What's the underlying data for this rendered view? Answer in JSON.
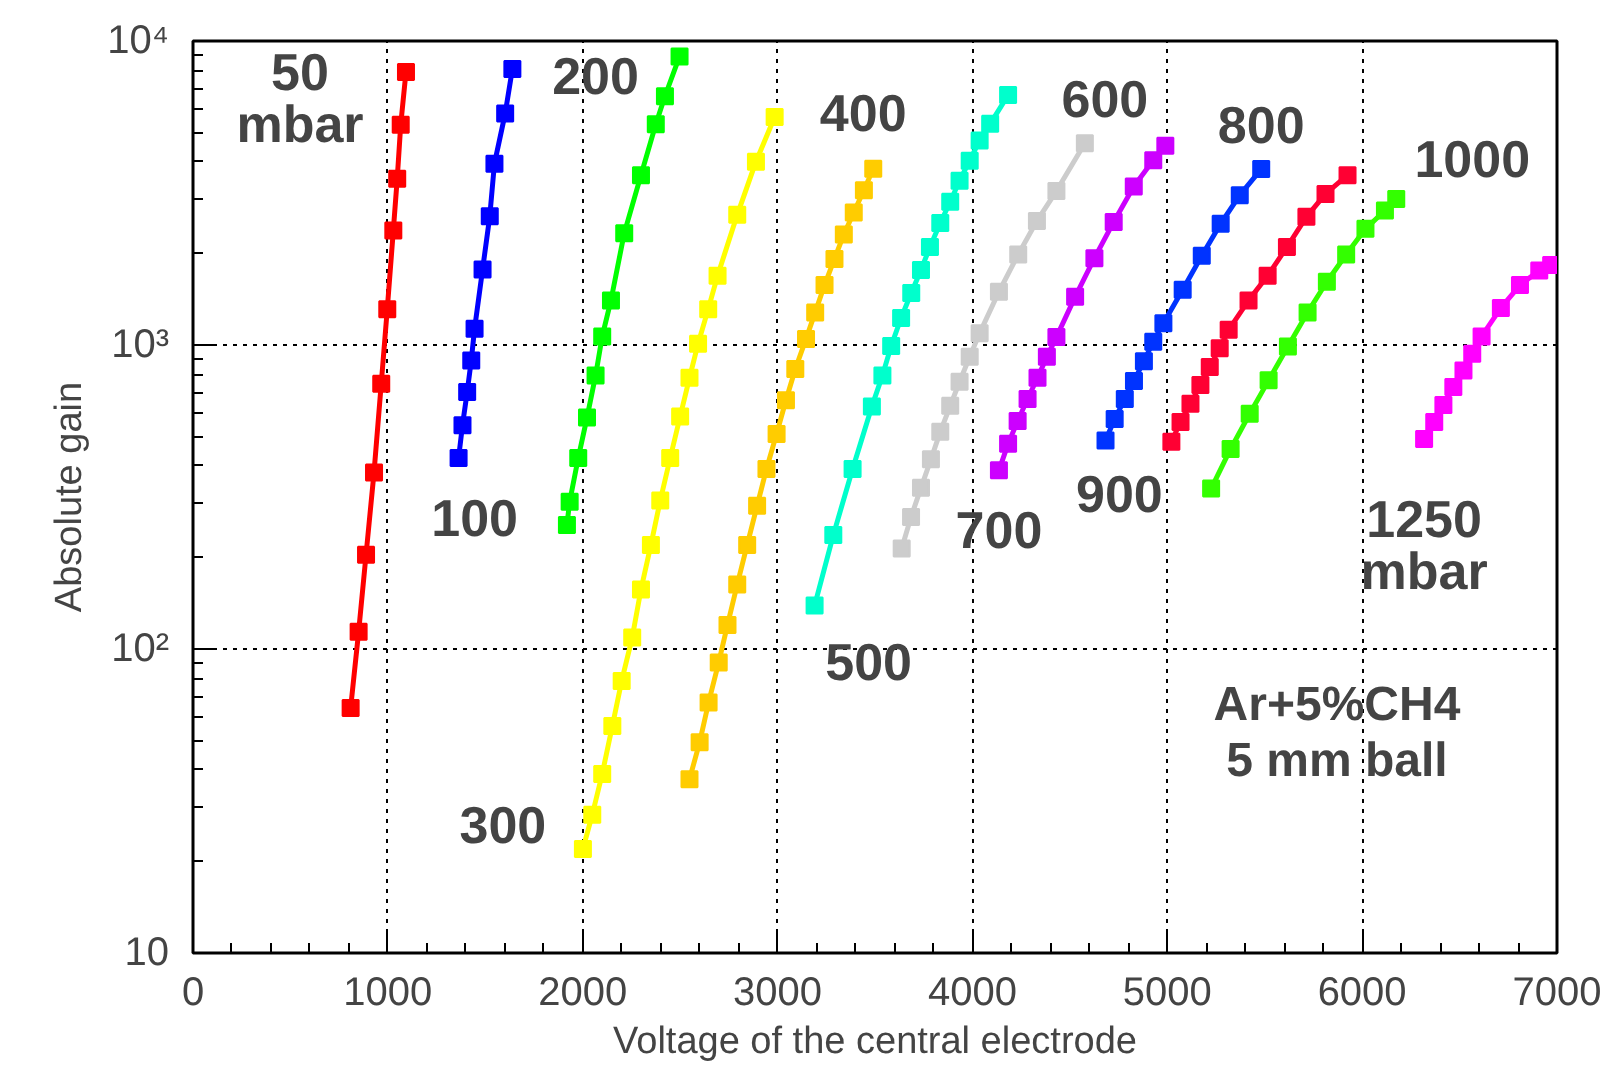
{
  "chart_data": {
    "type": "line",
    "xlabel": "Voltage of the central electrode",
    "ylabel": "Absolute gain",
    "xlim": [
      0,
      7000
    ],
    "ylim": [
      10,
      10000
    ],
    "log": "y",
    "grid": true,
    "marker": "square",
    "line_style": "solid",
    "xticks": [
      0,
      1000,
      2000,
      3000,
      4000,
      5000,
      6000,
      7000
    ],
    "yticks": [
      10,
      {
        "value": 100,
        "label": "10²"
      },
      {
        "value": 1000,
        "label": "10³"
      },
      {
        "value": 10000,
        "label": "10⁴"
      }
    ],
    "annotations": [
      "Ar+5%CH4\n5 mm ball"
    ],
    "series": [
      {
        "name": "50\nmbar",
        "color": "#ff0000",
        "x": [
          809,
          850,
          888,
          929,
          966,
          997,
          1028,
          1048,
          1066,
          1093
        ],
        "values": [
          64,
          114,
          204,
          381,
          745,
          1312,
          2380,
          3520,
          5300,
          7900
        ]
      },
      {
        "name": "100",
        "color": "#0000ff",
        "x": [
          1363,
          1383,
          1407,
          1428,
          1445,
          1486,
          1523,
          1547,
          1602,
          1639
        ],
        "values": [
          425,
          545,
          700,
          890,
          1130,
          1770,
          2650,
          3950,
          5770,
          8090
        ]
      },
      {
        "name": "200",
        "color": "#00ff00",
        "x": [
          1919,
          1933,
          1977,
          2022,
          2066,
          2100,
          2145,
          2213,
          2299,
          2375,
          2422,
          2497
        ],
        "values": [
          256,
          305,
          425,
          577,
          793,
          1067,
          1402,
          2330,
          3620,
          5320,
          6580,
          8900
        ]
      },
      {
        "name": "300",
        "color": "#ffff00",
        "x": [
          2001,
          2049,
          2100,
          2152,
          2200,
          2254,
          2299,
          2350,
          2398,
          2449,
          2500,
          2548,
          2592,
          2644,
          2692,
          2793,
          2889,
          2985
        ],
        "values": [
          22,
          28.5,
          38.8,
          55.8,
          78.5,
          109,
          157,
          220,
          308,
          425,
          582,
          780,
          1010,
          1312,
          1690,
          2680,
          4010,
          5620
        ]
      },
      {
        "name": "400",
        "color": "#ffcc00",
        "x": [
          2548,
          2600,
          2646,
          2698,
          2743,
          2793,
          2844,
          2895,
          2943,
          2995,
          3043,
          3091,
          3146,
          3193,
          3241,
          3292,
          3340,
          3391,
          3443,
          3491
        ],
        "values": [
          37.3,
          49.3,
          66.7,
          90.3,
          120,
          163,
          220,
          296,
          391,
          510,
          658,
          834,
          1047,
          1280,
          1575,
          1920,
          2310,
          2730,
          3230,
          3800
        ]
      },
      {
        "name": "500",
        "color": "#00ffcc",
        "x": [
          3190,
          3286,
          3385,
          3484,
          3538,
          3583,
          3634,
          3686,
          3736,
          3782,
          3835,
          3886,
          3934,
          3986,
          4037,
          4091,
          4183
        ],
        "values": [
          139,
          237,
          391,
          628,
          793,
          993,
          1227,
          1482,
          1766,
          2100,
          2520,
          2960,
          3470,
          4040,
          4710,
          5340,
          6640
        ]
      },
      {
        "name": "600",
        "color": "#cccccc",
        "x": [
          3637,
          3685,
          3736,
          3787,
          3835,
          3886,
          3934,
          3986,
          4037,
          4136,
          4235,
          4331,
          4431,
          4577
        ],
        "values": [
          214,
          272,
          339,
          421,
          518,
          631,
          757,
          914,
          1094,
          1497,
          1985,
          2560,
          3210,
          4610
        ]
      },
      {
        "name": "700",
        "color": "#cc00ff",
        "x": [
          4136,
          4183,
          4232,
          4283,
          4334,
          4382,
          4431,
          4527,
          4626,
          4725,
          4828,
          4928,
          4990
        ],
        "values": [
          387,
          473,
          562,
          664,
          780,
          914,
          1062,
          1440,
          1930,
          2540,
          3320,
          4050,
          4520
        ]
      },
      {
        "name": "800",
        "color": "#0033ff",
        "x": [
          4683,
          4730,
          4782,
          4829,
          4880,
          4928,
          4980,
          5079,
          5177,
          5274,
          5372,
          5482
        ],
        "values": [
          485,
          571,
          664,
          762,
          885,
          1025,
          1180,
          1520,
          1965,
          2505,
          3110,
          3790
        ]
      },
      {
        "name": "900",
        "color": "#ff0033",
        "x": [
          5021,
          5068,
          5119,
          5170,
          5218,
          5269,
          5315,
          5417,
          5515,
          5614,
          5714,
          5812,
          5925
        ],
        "values": [
          481,
          558,
          641,
          738,
          847,
          975,
          1122,
          1402,
          1690,
          2100,
          2640,
          3140,
          3620
        ]
      },
      {
        "name": "1000",
        "color": "#33ff00",
        "x": [
          5225,
          5325,
          5423,
          5520,
          5619,
          5720,
          5819,
          5918,
          6017,
          6117,
          6175
        ],
        "values": [
          337,
          455,
          594,
          765,
          989,
          1280,
          1615,
          1985,
          2410,
          2770,
          3020
        ]
      },
      {
        "name": "1250\nmbar",
        "color": "#ff00ff",
        "x": [
          6318,
          6370,
          6417,
          6468,
          6520,
          6565,
          6613,
          6712,
          6810,
          6909,
          6970
        ],
        "values": [
          491,
          558,
          635,
          728,
          825,
          935,
          1067,
          1324,
          1575,
          1758,
          1832
        ]
      }
    ]
  }
}
